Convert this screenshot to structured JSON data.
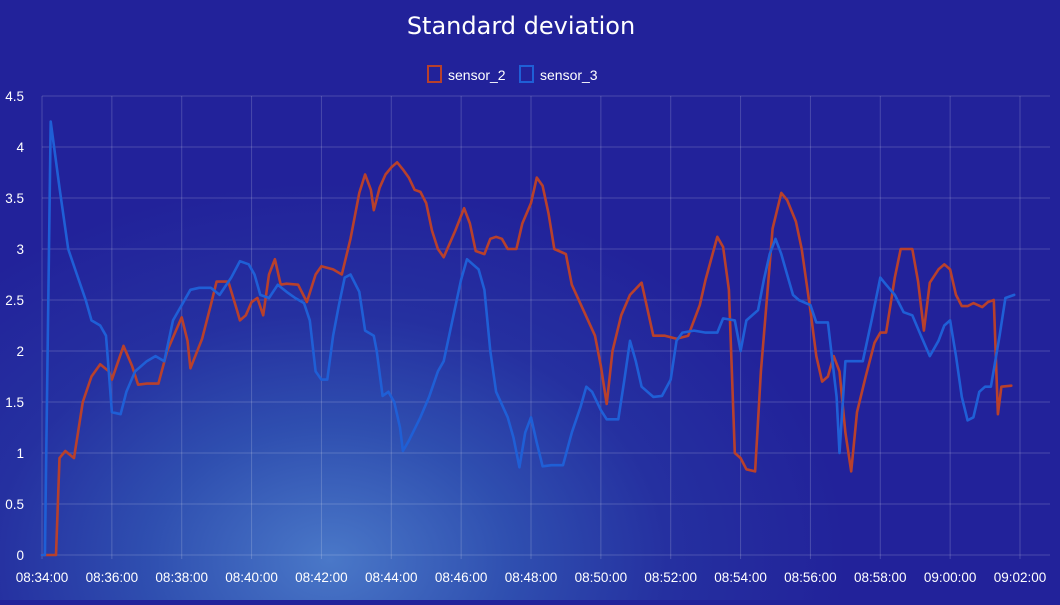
{
  "chart_data": {
    "type": "line",
    "title": "Standard deviation",
    "xlabel": "",
    "ylabel": "",
    "xlim": [
      "08:34:00",
      "09:02:00"
    ],
    "ylim": [
      0,
      4.5
    ],
    "grid": true,
    "legend_position": "top-center",
    "x_ticks": [
      "08:34:00",
      "08:36:00",
      "08:38:00",
      "08:40:00",
      "08:42:00",
      "08:44:00",
      "08:46:00",
      "08:48:00",
      "08:50:00",
      "08:52:00",
      "08:54:00",
      "08:56:00",
      "08:58:00",
      "09:00:00",
      "09:02:00"
    ],
    "y_ticks": [
      "0",
      "0.5",
      "1",
      "1.5",
      "2",
      "2.5",
      "3",
      "3.5",
      "4",
      "4.5"
    ],
    "series": [
      {
        "name": "sensor_2",
        "color": "#b8402c",
        "points": [
          [
            "08:34:00",
            0.0
          ],
          [
            "08:34:24",
            0.0
          ],
          [
            "08:34:30",
            0.95
          ],
          [
            "08:34:40",
            1.02
          ],
          [
            "08:34:55",
            0.95
          ],
          [
            "08:35:10",
            1.5
          ],
          [
            "08:35:25",
            1.75
          ],
          [
            "08:35:40",
            1.87
          ],
          [
            "08:35:55",
            1.8
          ],
          [
            "08:36:00",
            1.72
          ],
          [
            "08:36:20",
            2.05
          ],
          [
            "08:36:35",
            1.85
          ],
          [
            "08:36:45",
            1.67
          ],
          [
            "08:37:00",
            1.68
          ],
          [
            "08:37:20",
            1.68
          ],
          [
            "08:37:35",
            2.0
          ],
          [
            "08:37:50",
            2.2
          ],
          [
            "08:38:00",
            2.33
          ],
          [
            "08:38:10",
            2.1
          ],
          [
            "08:38:15",
            1.83
          ],
          [
            "08:38:35",
            2.12
          ],
          [
            "08:38:50",
            2.45
          ],
          [
            "08:39:00",
            2.68
          ],
          [
            "08:39:20",
            2.68
          ],
          [
            "08:39:35",
            2.4
          ],
          [
            "08:39:40",
            2.3
          ],
          [
            "08:39:50",
            2.35
          ],
          [
            "08:40:00",
            2.48
          ],
          [
            "08:40:10",
            2.52
          ],
          [
            "08:40:20",
            2.35
          ],
          [
            "08:40:30",
            2.75
          ],
          [
            "08:40:40",
            2.9
          ],
          [
            "08:40:50",
            2.65
          ],
          [
            "08:41:00",
            2.66
          ],
          [
            "08:41:20",
            2.65
          ],
          [
            "08:41:35",
            2.48
          ],
          [
            "08:41:50",
            2.75
          ],
          [
            "08:42:00",
            2.83
          ],
          [
            "08:42:20",
            2.8
          ],
          [
            "08:42:35",
            2.75
          ],
          [
            "08:42:50",
            3.1
          ],
          [
            "08:43:05",
            3.55
          ],
          [
            "08:43:15",
            3.73
          ],
          [
            "08:43:25",
            3.58
          ],
          [
            "08:43:30",
            3.38
          ],
          [
            "08:43:40",
            3.6
          ],
          [
            "08:43:50",
            3.73
          ],
          [
            "08:44:00",
            3.8
          ],
          [
            "08:44:10",
            3.85
          ],
          [
            "08:44:20",
            3.78
          ],
          [
            "08:44:30",
            3.7
          ],
          [
            "08:44:40",
            3.58
          ],
          [
            "08:44:50",
            3.56
          ],
          [
            "08:45:00",
            3.45
          ],
          [
            "08:45:10",
            3.18
          ],
          [
            "08:45:20",
            3.0
          ],
          [
            "08:45:30",
            2.92
          ],
          [
            "08:45:50",
            3.18
          ],
          [
            "08:46:05",
            3.4
          ],
          [
            "08:46:15",
            3.25
          ],
          [
            "08:46:25",
            2.98
          ],
          [
            "08:46:40",
            2.95
          ],
          [
            "08:46:50",
            3.1
          ],
          [
            "08:47:00",
            3.12
          ],
          [
            "08:47:10",
            3.1
          ],
          [
            "08:47:20",
            3.0
          ],
          [
            "08:47:35",
            3.0
          ],
          [
            "08:47:45",
            3.25
          ],
          [
            "08:48:00",
            3.45
          ],
          [
            "08:48:10",
            3.7
          ],
          [
            "08:48:20",
            3.62
          ],
          [
            "08:48:30",
            3.35
          ],
          [
            "08:48:40",
            3.0
          ],
          [
            "08:49:00",
            2.95
          ],
          [
            "08:49:10",
            2.65
          ],
          [
            "08:49:30",
            2.4
          ],
          [
            "08:49:50",
            2.15
          ],
          [
            "08:50:00",
            1.85
          ],
          [
            "08:50:10",
            1.48
          ],
          [
            "08:50:20",
            2.0
          ],
          [
            "08:50:35",
            2.35
          ],
          [
            "08:50:50",
            2.55
          ],
          [
            "08:51:10",
            2.67
          ],
          [
            "08:51:30",
            2.15
          ],
          [
            "08:51:50",
            2.15
          ],
          [
            "08:52:10",
            2.12
          ],
          [
            "08:52:30",
            2.15
          ],
          [
            "08:52:40",
            2.3
          ],
          [
            "08:52:50",
            2.45
          ],
          [
            "08:53:00",
            2.7
          ],
          [
            "08:53:20",
            3.12
          ],
          [
            "08:53:30",
            3.02
          ],
          [
            "08:53:40",
            2.6
          ],
          [
            "08:53:50",
            1.0
          ],
          [
            "08:54:00",
            0.95
          ],
          [
            "08:54:10",
            0.84
          ],
          [
            "08:54:25",
            0.82
          ],
          [
            "08:54:35",
            1.8
          ],
          [
            "08:54:45",
            2.5
          ],
          [
            "08:54:55",
            3.2
          ],
          [
            "08:55:10",
            3.55
          ],
          [
            "08:55:20",
            3.48
          ],
          [
            "08:55:35",
            3.27
          ],
          [
            "08:55:45",
            3.0
          ],
          [
            "08:56:00",
            2.4
          ],
          [
            "08:56:10",
            1.95
          ],
          [
            "08:56:20",
            1.7
          ],
          [
            "08:56:30",
            1.75
          ],
          [
            "08:56:40",
            1.95
          ],
          [
            "08:56:50",
            1.8
          ],
          [
            "08:57:00",
            1.2
          ],
          [
            "08:57:10",
            0.82
          ],
          [
            "08:57:20",
            1.4
          ],
          [
            "08:57:35",
            1.75
          ],
          [
            "08:57:50",
            2.08
          ],
          [
            "08:58:00",
            2.18
          ],
          [
            "08:58:10",
            2.18
          ],
          [
            "08:58:25",
            2.72
          ],
          [
            "08:58:35",
            3.0
          ],
          [
            "08:58:55",
            3.0
          ],
          [
            "08:59:05",
            2.68
          ],
          [
            "08:59:15",
            2.2
          ],
          [
            "08:59:25",
            2.67
          ],
          [
            "08:59:40",
            2.8
          ],
          [
            "08:59:50",
            2.85
          ],
          [
            "09:00:00",
            2.8
          ],
          [
            "09:00:10",
            2.55
          ],
          [
            "09:00:20",
            2.44
          ],
          [
            "09:00:30",
            2.44
          ],
          [
            "09:00:40",
            2.47
          ],
          [
            "09:00:55",
            2.43
          ],
          [
            "09:01:05",
            2.48
          ],
          [
            "09:01:15",
            2.5
          ],
          [
            "09:01:22",
            1.38
          ],
          [
            "09:01:28",
            1.65
          ],
          [
            "09:01:45",
            1.66
          ]
        ]
      },
      {
        "name": "sensor_3",
        "color": "#1f5fd6",
        "points": [
          [
            "08:34:00",
            0.0
          ],
          [
            "08:34:05",
            0.0
          ],
          [
            "08:34:15",
            4.25
          ],
          [
            "08:34:30",
            3.6
          ],
          [
            "08:34:45",
            3.0
          ],
          [
            "08:35:00",
            2.75
          ],
          [
            "08:35:15",
            2.5
          ],
          [
            "08:35:25",
            2.3
          ],
          [
            "08:35:40",
            2.25
          ],
          [
            "08:35:50",
            2.15
          ],
          [
            "08:36:00",
            1.4
          ],
          [
            "08:36:15",
            1.38
          ],
          [
            "08:36:25",
            1.6
          ],
          [
            "08:36:40",
            1.8
          ],
          [
            "08:37:00",
            1.9
          ],
          [
            "08:37:15",
            1.95
          ],
          [
            "08:37:30",
            1.9
          ],
          [
            "08:37:45",
            2.3
          ],
          [
            "08:38:00",
            2.45
          ],
          [
            "08:38:15",
            2.6
          ],
          [
            "08:38:30",
            2.62
          ],
          [
            "08:38:50",
            2.62
          ],
          [
            "08:39:05",
            2.55
          ],
          [
            "08:39:25",
            2.72
          ],
          [
            "08:39:40",
            2.88
          ],
          [
            "08:39:55",
            2.85
          ],
          [
            "08:40:05",
            2.75
          ],
          [
            "08:40:15",
            2.55
          ],
          [
            "08:40:30",
            2.52
          ],
          [
            "08:40:45",
            2.65
          ],
          [
            "08:41:00",
            2.58
          ],
          [
            "08:41:15",
            2.52
          ],
          [
            "08:41:30",
            2.47
          ],
          [
            "08:41:40",
            2.3
          ],
          [
            "08:41:50",
            1.8
          ],
          [
            "08:42:00",
            1.72
          ],
          [
            "08:42:10",
            1.72
          ],
          [
            "08:42:20",
            2.15
          ],
          [
            "08:42:30",
            2.45
          ],
          [
            "08:42:40",
            2.72
          ],
          [
            "08:42:50",
            2.75
          ],
          [
            "08:43:05",
            2.58
          ],
          [
            "08:43:15",
            2.2
          ],
          [
            "08:43:30",
            2.15
          ],
          [
            "08:43:35",
            2.0
          ],
          [
            "08:43:45",
            1.56
          ],
          [
            "08:43:55",
            1.6
          ],
          [
            "08:44:05",
            1.5
          ],
          [
            "08:44:15",
            1.25
          ],
          [
            "08:44:20",
            1.02
          ],
          [
            "08:44:30",
            1.12
          ],
          [
            "08:44:50",
            1.35
          ],
          [
            "08:45:05",
            1.55
          ],
          [
            "08:45:20",
            1.8
          ],
          [
            "08:45:30",
            1.9
          ],
          [
            "08:45:45",
            2.3
          ],
          [
            "08:46:00",
            2.7
          ],
          [
            "08:46:10",
            2.9
          ],
          [
            "08:46:20",
            2.85
          ],
          [
            "08:46:30",
            2.8
          ],
          [
            "08:46:40",
            2.6
          ],
          [
            "08:46:50",
            2.0
          ],
          [
            "08:47:00",
            1.6
          ],
          [
            "08:47:20",
            1.35
          ],
          [
            "08:47:30",
            1.15
          ],
          [
            "08:47:40",
            0.86
          ],
          [
            "08:47:50",
            1.2
          ],
          [
            "08:48:00",
            1.35
          ],
          [
            "08:48:10",
            1.1
          ],
          [
            "08:48:20",
            0.87
          ],
          [
            "08:48:35",
            0.88
          ],
          [
            "08:48:55",
            0.88
          ],
          [
            "08:49:10",
            1.2
          ],
          [
            "08:49:25",
            1.45
          ],
          [
            "08:49:35",
            1.65
          ],
          [
            "08:49:45",
            1.6
          ],
          [
            "08:50:00",
            1.42
          ],
          [
            "08:50:10",
            1.33
          ],
          [
            "08:50:30",
            1.33
          ],
          [
            "08:50:40",
            1.7
          ],
          [
            "08:50:50",
            2.1
          ],
          [
            "08:51:00",
            1.9
          ],
          [
            "08:51:10",
            1.65
          ],
          [
            "08:51:30",
            1.55
          ],
          [
            "08:51:45",
            1.56
          ],
          [
            "08:52:00",
            1.72
          ],
          [
            "08:52:10",
            2.1
          ],
          [
            "08:52:20",
            2.18
          ],
          [
            "08:52:40",
            2.2
          ],
          [
            "08:53:00",
            2.18
          ],
          [
            "08:53:20",
            2.18
          ],
          [
            "08:53:30",
            2.32
          ],
          [
            "08:53:50",
            2.3
          ],
          [
            "08:54:00",
            2.0
          ],
          [
            "08:54:10",
            2.3
          ],
          [
            "08:54:30",
            2.4
          ],
          [
            "08:54:40",
            2.7
          ],
          [
            "08:54:50",
            2.95
          ],
          [
            "08:55:00",
            3.1
          ],
          [
            "08:55:10",
            2.95
          ],
          [
            "08:55:20",
            2.75
          ],
          [
            "08:55:30",
            2.55
          ],
          [
            "08:55:40",
            2.5
          ],
          [
            "08:56:00",
            2.45
          ],
          [
            "08:56:10",
            2.28
          ],
          [
            "08:56:30",
            2.28
          ],
          [
            "08:56:45",
            1.55
          ],
          [
            "08:56:50",
            1.0
          ],
          [
            "08:57:00",
            1.9
          ],
          [
            "08:57:10",
            1.9
          ],
          [
            "08:57:30",
            1.9
          ],
          [
            "08:57:45",
            2.3
          ],
          [
            "08:58:00",
            2.72
          ],
          [
            "08:58:10",
            2.65
          ],
          [
            "08:58:25",
            2.55
          ],
          [
            "08:58:40",
            2.38
          ],
          [
            "08:58:55",
            2.35
          ],
          [
            "08:59:10",
            2.15
          ],
          [
            "08:59:25",
            1.95
          ],
          [
            "08:59:40",
            2.1
          ],
          [
            "08:59:50",
            2.25
          ],
          [
            "09:00:00",
            2.3
          ],
          [
            "09:00:10",
            1.95
          ],
          [
            "09:00:20",
            1.55
          ],
          [
            "09:00:30",
            1.32
          ],
          [
            "09:00:40",
            1.35
          ],
          [
            "09:00:50",
            1.6
          ],
          [
            "09:01:00",
            1.65
          ],
          [
            "09:01:10",
            1.65
          ],
          [
            "09:01:25",
            2.15
          ],
          [
            "09:01:35",
            2.52
          ],
          [
            "09:01:50",
            2.55
          ]
        ]
      }
    ]
  }
}
